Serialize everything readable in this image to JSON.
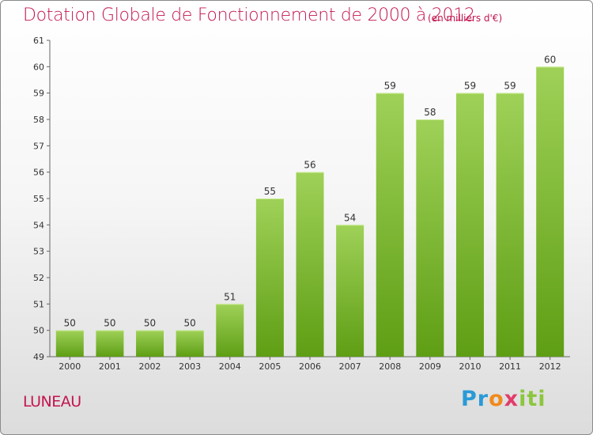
{
  "header": {
    "title": "Dotation Globale de Fonctionnement de 2000 à 2012",
    "subtitle": "(en milliers d'€)"
  },
  "footer": {
    "commune": "LUNEAU",
    "logo": [
      "Pr",
      "o",
      "x",
      "iti"
    ]
  },
  "colors": {
    "accent": "#c4154d",
    "bar_top": "#9fd158",
    "bar_bottom": "#5e9e14"
  },
  "chart_data": {
    "type": "bar",
    "title": "Dotation Globale de Fonctionnement de 2000 à 2012",
    "subtitle": "(en milliers d'€)",
    "xlabel": "",
    "ylabel": "",
    "categories": [
      "2000",
      "2001",
      "2002",
      "2003",
      "2004",
      "2005",
      "2006",
      "2007",
      "2008",
      "2009",
      "2010",
      "2011",
      "2012"
    ],
    "values": [
      50,
      50,
      50,
      50,
      51,
      55,
      56,
      54,
      59,
      58,
      59,
      59,
      60
    ],
    "ylim": [
      49,
      61
    ],
    "yticks": [
      49,
      50,
      51,
      52,
      53,
      54,
      55,
      56,
      57,
      58,
      59,
      60,
      61
    ],
    "grid": false,
    "legend": "none"
  }
}
